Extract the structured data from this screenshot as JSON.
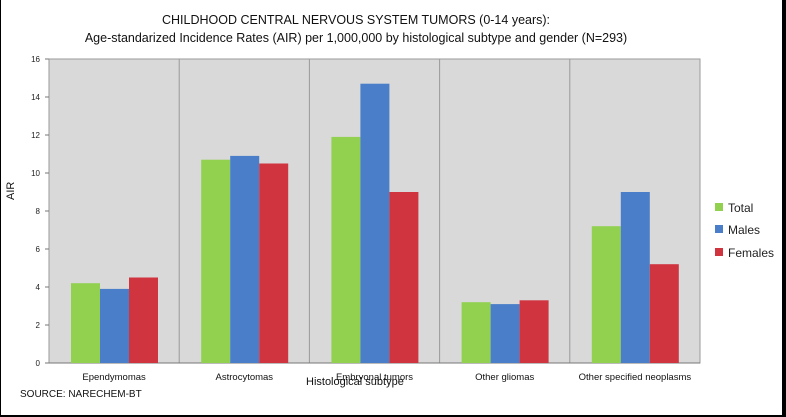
{
  "chart_data": {
    "type": "bar",
    "title": "CHILDHOOD CENTRAL NERVOUS SYSTEM TUMORS (0-14 years):",
    "subtitle": "Age-standarized  Incidence Rates (AIR) per 1,000,000 by histological subtype and gender (N=293)",
    "xlabel": "Histological subtype",
    "ylabel": "AIR",
    "ylim": [
      0,
      16
    ],
    "yticks": [
      0,
      2,
      4,
      6,
      8,
      10,
      12,
      14,
      16
    ],
    "grid": true,
    "legend_position": "right",
    "categories": [
      "Ependymomas",
      "Astrocytomas",
      "Embryonal tumors",
      "Other gliomas",
      "Other specified neoplasms"
    ],
    "series": [
      {
        "name": "Total",
        "color": "#92d050",
        "values": [
          4.2,
          10.7,
          11.9,
          3.2,
          7.2
        ]
      },
      {
        "name": "Males",
        "color": "#4a7ec9",
        "values": [
          3.9,
          10.9,
          14.7,
          3.1,
          9.0
        ]
      },
      {
        "name": "Females",
        "color": "#d0343f",
        "values": [
          4.5,
          10.5,
          9.0,
          3.3,
          5.2
        ]
      }
    ]
  },
  "source": "SOURCE: NARECHEM-BT"
}
